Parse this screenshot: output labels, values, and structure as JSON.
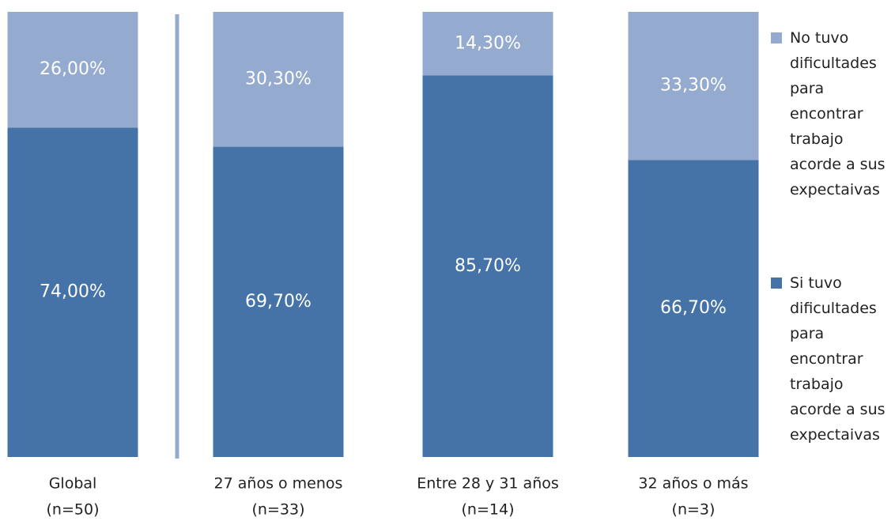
{
  "chart_data": {
    "type": "stacked_bar",
    "categories": [
      [
        "Global",
        "(n=50)"
      ],
      [
        "27 años o menos",
        "(n=33)"
      ],
      [
        "Entre 28 y 31 años",
        "(n=14)"
      ],
      [
        "32 años o más",
        "(n=3)"
      ]
    ],
    "series": [
      {
        "name": "Si tuvo dificultades para encontrar trabajo acorde a sus expectaivas",
        "color": "#4573a7",
        "values": [
          74.0,
          69.7,
          85.7,
          66.7
        ],
        "value_labels": [
          "74,00%",
          "69,70%",
          "85,70%",
          "66,70%"
        ]
      },
      {
        "name": "No tuvo dificultades para encontrar trabajo acorde a sus expectaivas",
        "color": "#94aacf",
        "values": [
          26.0,
          30.3,
          14.3,
          33.3
        ],
        "value_labels": [
          "26,00%",
          "30,30%",
          "14,30%",
          "33,30%"
        ]
      }
    ],
    "ylim": [
      0,
      100
    ],
    "legend": "right"
  }
}
